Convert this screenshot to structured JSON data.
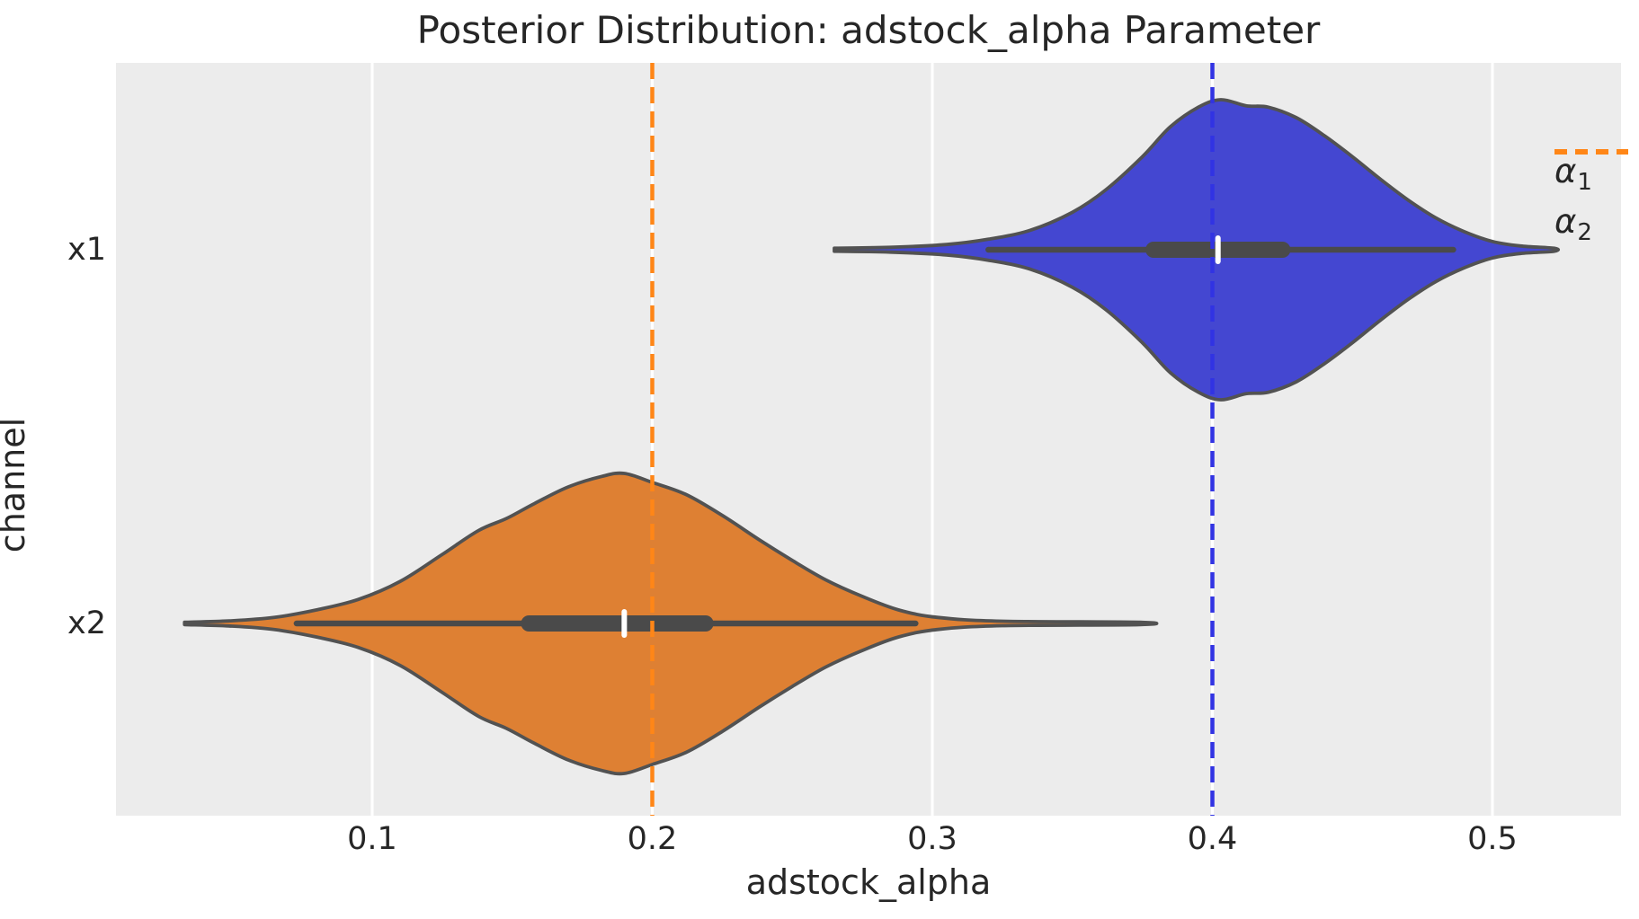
{
  "title": "Posterior Distribution: adstock_alpha Parameter",
  "axes": {
    "xlabel": "adstock_alpha",
    "ylabel": "channel",
    "x_tick_labels": [
      "0.1",
      "0.2",
      "0.3",
      "0.4",
      "0.5"
    ],
    "x_tick_values": [
      0.1,
      0.2,
      0.3,
      0.4,
      0.5
    ],
    "y_tick_labels": [
      "x1",
      "x2"
    ]
  },
  "legend": {
    "entries": [
      {
        "symbol": "α",
        "sub": "1",
        "color": "#3133e3"
      },
      {
        "symbol": "α",
        "sub": "2",
        "color": "#ff8617"
      }
    ]
  },
  "colors": {
    "plot_background": "#ececec",
    "gridline": "#ffffff",
    "violin_outline": "#525252",
    "inner_box": "#4a4a4a",
    "median_tick": "#ffffff",
    "text": "#262626",
    "blue_fill": "#4447d1",
    "orange_fill": "#de8033",
    "blue_dash": "#3133e3",
    "orange_dash": "#ff8617"
  },
  "chart_data": {
    "type": "violin",
    "orientation": "horizontal",
    "title": "Posterior Distribution: adstock_alpha Parameter",
    "xlabel": "adstock_alpha",
    "ylabel": "channel",
    "xlim": [
      0.009,
      0.546
    ],
    "categories": [
      "x1",
      "x2"
    ],
    "grid": "vertical white gridlines only",
    "legend_position": "upper right",
    "series": [
      {
        "name": "x1",
        "fill": "#4447d1",
        "median": 0.402,
        "q1": 0.379,
        "q3": 0.425,
        "whisker_low": 0.32,
        "whisker_high": 0.486,
        "range": [
          0.265,
          0.522
        ],
        "kde_profile": [
          [
            0.265,
            0.01
          ],
          [
            0.285,
            0.016
          ],
          [
            0.305,
            0.035
          ],
          [
            0.32,
            0.07
          ],
          [
            0.335,
            0.13
          ],
          [
            0.35,
            0.25
          ],
          [
            0.362,
            0.4
          ],
          [
            0.375,
            0.62
          ],
          [
            0.385,
            0.82
          ],
          [
            0.395,
            0.95
          ],
          [
            0.403,
            1.0
          ],
          [
            0.412,
            0.96
          ],
          [
            0.42,
            0.95
          ],
          [
            0.43,
            0.88
          ],
          [
            0.44,
            0.76
          ],
          [
            0.45,
            0.62
          ],
          [
            0.46,
            0.47
          ],
          [
            0.47,
            0.33
          ],
          [
            0.48,
            0.21
          ],
          [
            0.49,
            0.12
          ],
          [
            0.5,
            0.055
          ],
          [
            0.51,
            0.025
          ],
          [
            0.522,
            0.01
          ]
        ]
      },
      {
        "name": "x2",
        "fill": "#de8033",
        "median": 0.19,
        "q1": 0.156,
        "q3": 0.219,
        "whisker_low": 0.073,
        "whisker_high": 0.294,
        "range": [
          0.033,
          0.374
        ],
        "kde_profile": [
          [
            0.033,
            0.008
          ],
          [
            0.05,
            0.018
          ],
          [
            0.065,
            0.04
          ],
          [
            0.08,
            0.09
          ],
          [
            0.095,
            0.16
          ],
          [
            0.11,
            0.28
          ],
          [
            0.125,
            0.46
          ],
          [
            0.138,
            0.62
          ],
          [
            0.148,
            0.7
          ],
          [
            0.158,
            0.8
          ],
          [
            0.17,
            0.91
          ],
          [
            0.182,
            0.98
          ],
          [
            0.19,
            1.0
          ],
          [
            0.2,
            0.94
          ],
          [
            0.212,
            0.86
          ],
          [
            0.225,
            0.72
          ],
          [
            0.238,
            0.56
          ],
          [
            0.25,
            0.42
          ],
          [
            0.262,
            0.29
          ],
          [
            0.275,
            0.18
          ],
          [
            0.288,
            0.09
          ],
          [
            0.302,
            0.04
          ],
          [
            0.325,
            0.015
          ],
          [
            0.374,
            0.008
          ]
        ]
      }
    ],
    "reference_lines": [
      {
        "label": "α1",
        "value": 0.4,
        "color": "#3133e3",
        "style": "dashed"
      },
      {
        "label": "α2",
        "value": 0.2,
        "color": "#ff8617",
        "style": "dashed"
      }
    ]
  }
}
